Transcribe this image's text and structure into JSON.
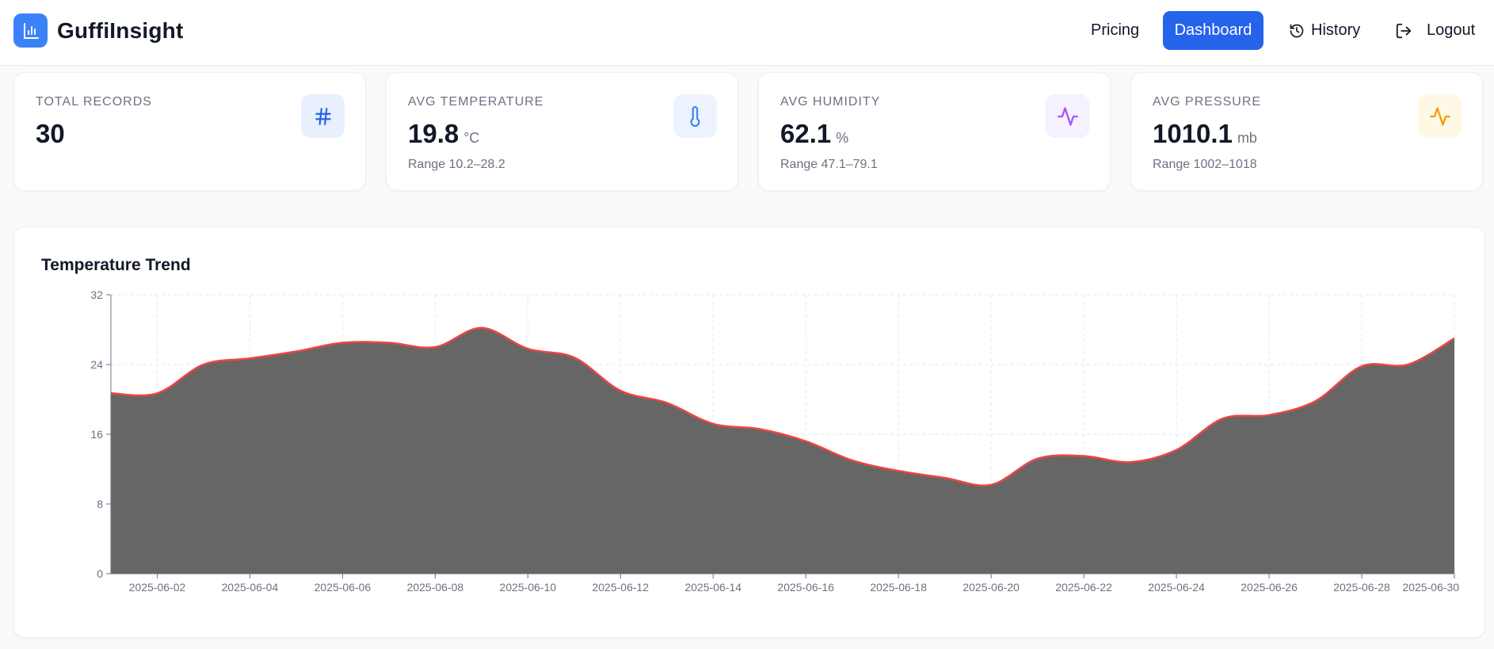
{
  "app": {
    "name": "GuffiInsight",
    "icons": {
      "logo": "bar-chart-icon"
    }
  },
  "nav": {
    "pricing": "Pricing",
    "dashboard": "Dashboard",
    "history": "History",
    "logout": "Logout",
    "active": "Dashboard",
    "accent_color": "#2563eb"
  },
  "stats": [
    {
      "label": "TOTAL RECORDS",
      "value": "30",
      "unit": "",
      "range": "",
      "icon": "hash-icon",
      "icon_color": "#2563eb",
      "icon_bg": "#e8effd"
    },
    {
      "label": "AVG TEMPERATURE",
      "value": "19.8",
      "unit": "°C",
      "range": "Range 10.2–28.2",
      "icon": "thermometer-icon",
      "icon_color": "#3b82f6",
      "icon_bg": "#ecf3fe"
    },
    {
      "label": "AVG HUMIDITY",
      "value": "62.1",
      "unit": "%",
      "range": "Range 47.1–79.1",
      "icon": "activity-icon",
      "icon_color": "#a855f7",
      "icon_bg": "#f6f1fe"
    },
    {
      "label": "AVG PRESSURE",
      "value": "1010.1",
      "unit": "mb",
      "range": "Range 1002–1018",
      "icon": "activity-icon",
      "icon_color": "#f59e0b",
      "icon_bg": "#fef8e6"
    }
  ],
  "chart": {
    "title": "Temperature Trend"
  },
  "chart_data": {
    "type": "area",
    "title": "Temperature Trend",
    "xlabel": "",
    "ylabel": "",
    "ylim": [
      0,
      32
    ],
    "yticks": [
      0,
      8,
      16,
      24,
      32
    ],
    "grid": true,
    "line_color": "#ef4444",
    "fill_color": "#666666",
    "x": [
      "2025-06-01",
      "2025-06-02",
      "2025-06-03",
      "2025-06-04",
      "2025-06-05",
      "2025-06-06",
      "2025-06-07",
      "2025-06-08",
      "2025-06-09",
      "2025-06-10",
      "2025-06-11",
      "2025-06-12",
      "2025-06-13",
      "2025-06-14",
      "2025-06-15",
      "2025-06-16",
      "2025-06-17",
      "2025-06-18",
      "2025-06-19",
      "2025-06-20",
      "2025-06-21",
      "2025-06-22",
      "2025-06-23",
      "2025-06-24",
      "2025-06-25",
      "2025-06-26",
      "2025-06-27",
      "2025-06-28",
      "2025-06-29",
      "2025-06-30"
    ],
    "values": [
      20.7,
      20.7,
      24.0,
      24.7,
      25.5,
      26.5,
      26.5,
      26.0,
      28.2,
      25.8,
      24.8,
      21.0,
      19.6,
      17.2,
      16.6,
      15.2,
      13.0,
      11.8,
      11.0,
      10.2,
      13.2,
      13.5,
      12.8,
      14.2,
      17.8,
      18.2,
      19.8,
      23.8,
      24.0,
      27.0
    ],
    "xticks": [
      "2025-06-02",
      "2025-06-04",
      "2025-06-06",
      "2025-06-08",
      "2025-06-10",
      "2025-06-12",
      "2025-06-14",
      "2025-06-16",
      "2025-06-18",
      "2025-06-20",
      "2025-06-22",
      "2025-06-24",
      "2025-06-26",
      "2025-06-28",
      "2025-06-30"
    ]
  }
}
